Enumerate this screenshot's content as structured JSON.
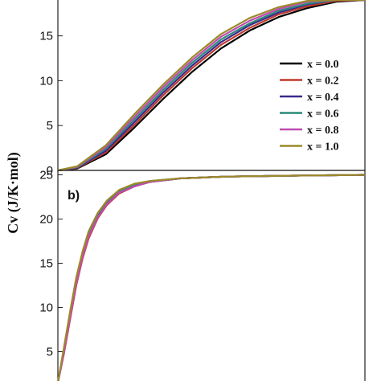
{
  "ylabel": "Cv (J/K·mol)",
  "chart_data": [
    {
      "type": "line",
      "panel_label": "",
      "ylim": [
        0,
        19
      ],
      "yticks": [
        "0",
        "5",
        "10",
        "15"
      ],
      "ytick_values": [
        0,
        5,
        10,
        15
      ],
      "legend_placement": "right",
      "series": [
        {
          "name": "x = 0.0",
          "color": "#000000",
          "x": [
            0,
            0.02,
            0.05,
            0.08,
            0.11,
            0.14,
            0.17,
            0.2,
            0.23,
            0.26,
            0.29,
            0.32
          ],
          "y": [
            0,
            0.2,
            1.8,
            4.8,
            8.0,
            11.0,
            13.6,
            15.6,
            17.1,
            18.1,
            18.8,
            19.0
          ]
        },
        {
          "name": "x = 0.2",
          "color": "#c0392b",
          "x": [
            0,
            0.02,
            0.05,
            0.08,
            0.11,
            0.14,
            0.17,
            0.2,
            0.23,
            0.26,
            0.29,
            0.32
          ],
          "y": [
            0,
            0.25,
            2.0,
            5.1,
            8.4,
            11.4,
            14.0,
            15.9,
            17.4,
            18.3,
            18.9,
            19.0
          ]
        },
        {
          "name": "x = 0.4",
          "color": "#3b2a8c",
          "x": [
            0,
            0.02,
            0.05,
            0.08,
            0.11,
            0.14,
            0.17,
            0.2,
            0.23,
            0.26,
            0.29,
            0.32
          ],
          "y": [
            0,
            0.3,
            2.2,
            5.4,
            8.7,
            11.7,
            14.3,
            16.2,
            17.6,
            18.5,
            19.0,
            19.0
          ]
        },
        {
          "name": "x = 0.6",
          "color": "#2a8a7a",
          "x": [
            0,
            0.02,
            0.05,
            0.08,
            0.11,
            0.14,
            0.17,
            0.2,
            0.23,
            0.26,
            0.29,
            0.32
          ],
          "y": [
            0,
            0.35,
            2.4,
            5.7,
            9.0,
            12.0,
            14.6,
            16.4,
            17.8,
            18.6,
            19.0,
            19.0
          ]
        },
        {
          "name": "x = 0.8",
          "color": "#c04bb0",
          "x": [
            0,
            0.02,
            0.05,
            0.08,
            0.11,
            0.14,
            0.17,
            0.2,
            0.23,
            0.26,
            0.29,
            0.32
          ],
          "y": [
            0,
            0.4,
            2.6,
            6.0,
            9.3,
            12.3,
            14.9,
            16.7,
            18.0,
            18.8,
            19.0,
            19.0
          ]
        },
        {
          "name": "x = 1.0",
          "color": "#9a8a2a",
          "x": [
            0,
            0.02,
            0.05,
            0.08,
            0.11,
            0.14,
            0.17,
            0.2,
            0.23,
            0.26,
            0.29,
            0.32
          ],
          "y": [
            0,
            0.45,
            2.8,
            6.3,
            9.6,
            12.6,
            15.2,
            17.0,
            18.2,
            18.9,
            19.0,
            19.0
          ]
        }
      ]
    },
    {
      "type": "line",
      "panel_label": "b)",
      "ylim": [
        1.5,
        25.5
      ],
      "yticks": [
        "5",
        "10",
        "15",
        "20",
        "25"
      ],
      "ytick_values": [
        5,
        10,
        15,
        20,
        25
      ],
      "series": [
        {
          "name": "x = 0.0",
          "color": "#000000",
          "x": [
            0,
            0.02,
            0.04,
            0.06,
            0.08,
            0.1,
            0.13,
            0.16,
            0.2,
            0.25,
            0.3,
            0.4,
            0.55,
            0.75,
            1.0
          ],
          "y": [
            1.5,
            5.0,
            9.0,
            12.8,
            15.8,
            18.1,
            20.3,
            21.8,
            23.0,
            23.8,
            24.2,
            24.6,
            24.8,
            24.9,
            25.0
          ]
        },
        {
          "name": "x = 0.2",
          "color": "#c0392b",
          "x": [
            0,
            0.02,
            0.04,
            0.06,
            0.08,
            0.1,
            0.13,
            0.16,
            0.2,
            0.25,
            0.3,
            0.4,
            0.55,
            0.75,
            1.0
          ],
          "y": [
            1.5,
            4.8,
            8.7,
            12.5,
            15.5,
            17.8,
            20.1,
            21.6,
            22.9,
            23.7,
            24.2,
            24.6,
            24.8,
            24.9,
            25.0
          ]
        },
        {
          "name": "x = 0.4",
          "color": "#3b2a8c",
          "x": [
            0,
            0.02,
            0.04,
            0.06,
            0.08,
            0.1,
            0.13,
            0.16,
            0.2,
            0.25,
            0.3,
            0.4,
            0.55,
            0.75,
            1.0
          ],
          "y": [
            1.5,
            5.1,
            9.1,
            12.9,
            15.9,
            18.2,
            20.4,
            21.9,
            23.1,
            23.8,
            24.2,
            24.6,
            24.8,
            24.9,
            25.0
          ]
        },
        {
          "name": "x = 0.6",
          "color": "#2a8a7a",
          "x": [
            0,
            0.02,
            0.04,
            0.06,
            0.08,
            0.1,
            0.13,
            0.16,
            0.2,
            0.25,
            0.3,
            0.4,
            0.55,
            0.75,
            1.0
          ],
          "y": [
            1.5,
            5.3,
            9.4,
            13.2,
            16.1,
            18.4,
            20.6,
            22.0,
            23.2,
            23.9,
            24.3,
            24.6,
            24.8,
            24.9,
            25.0
          ]
        },
        {
          "name": "x = 0.8",
          "color": "#c04bb0",
          "x": [
            0,
            0.02,
            0.04,
            0.06,
            0.08,
            0.1,
            0.13,
            0.16,
            0.2,
            0.25,
            0.3,
            0.4,
            0.55,
            0.75,
            1.0
          ],
          "y": [
            1.5,
            4.9,
            8.9,
            12.7,
            15.7,
            18.0,
            20.2,
            21.7,
            23.0,
            23.7,
            24.2,
            24.6,
            24.8,
            24.9,
            25.0
          ]
        },
        {
          "name": "x = 1.0",
          "color": "#9a8a2a",
          "x": [
            0,
            0.02,
            0.04,
            0.06,
            0.08,
            0.1,
            0.13,
            0.16,
            0.2,
            0.25,
            0.3,
            0.4,
            0.55,
            0.75,
            1.0
          ],
          "y": [
            1.5,
            5.5,
            9.6,
            13.4,
            16.3,
            18.6,
            20.7,
            22.1,
            23.3,
            24.0,
            24.3,
            24.6,
            24.8,
            24.9,
            25.0
          ]
        }
      ]
    }
  ]
}
